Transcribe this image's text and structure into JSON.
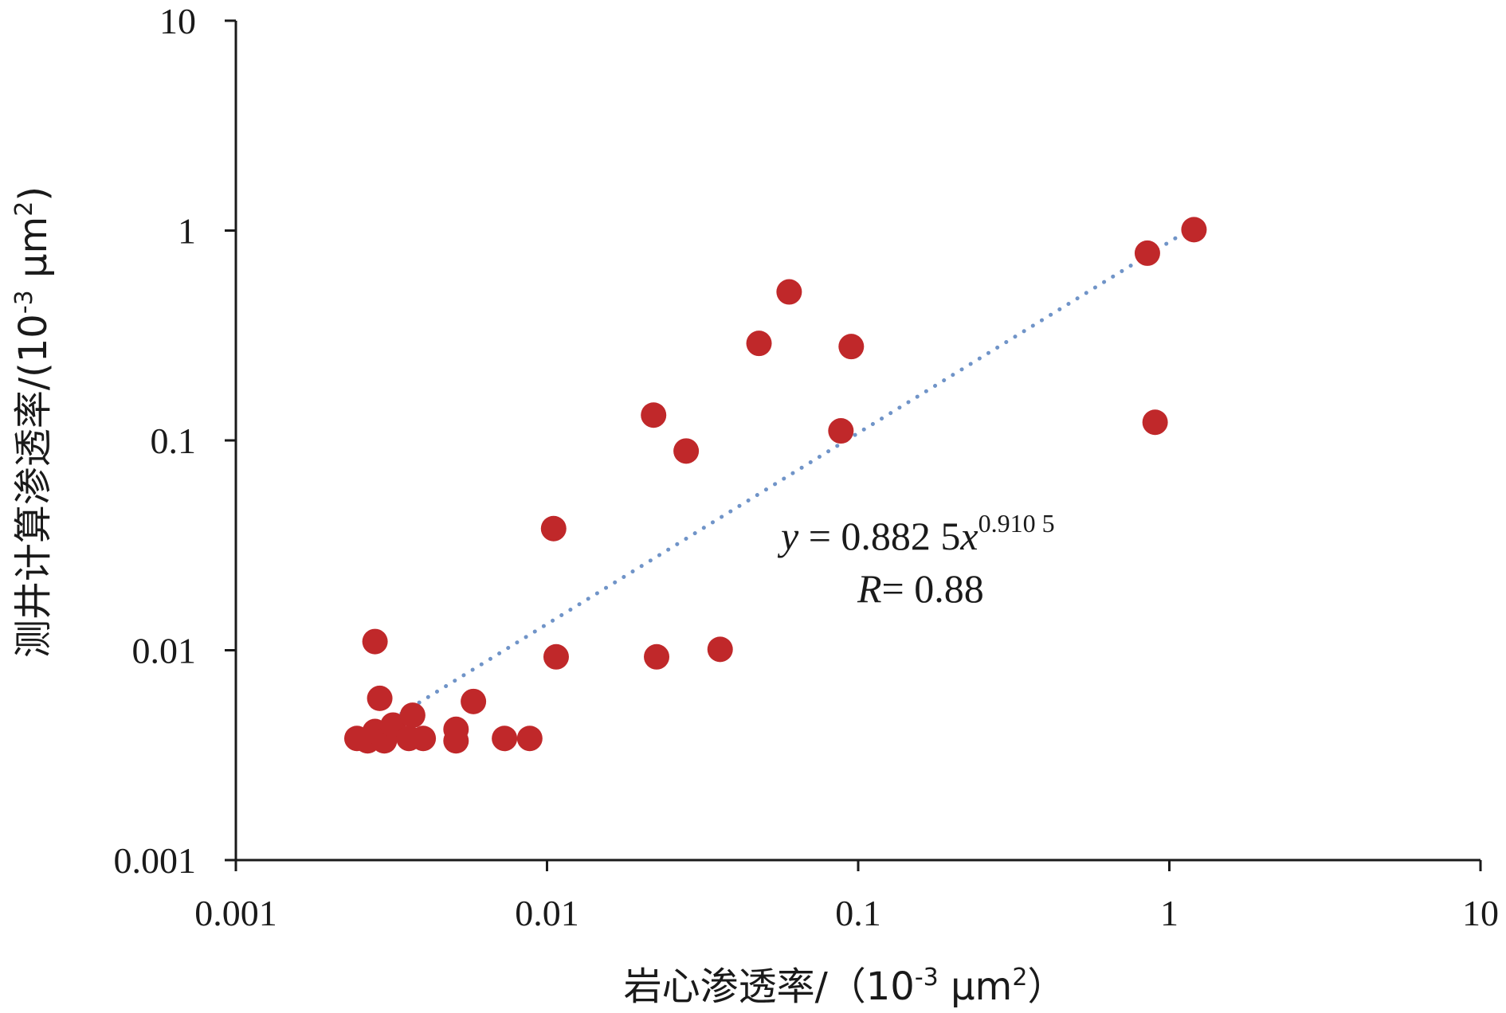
{
  "chart_data": {
    "type": "scatter",
    "x_scale": "log",
    "y_scale": "log",
    "xlim": [
      0.001,
      10
    ],
    "ylim": [
      0.001,
      10
    ],
    "x_ticks": [
      "0.001",
      "0.01",
      "0.1",
      "1",
      "10"
    ],
    "y_ticks": [
      "0.001",
      "0.01",
      "0.1",
      "1",
      "10"
    ],
    "xlabel": {
      "main": "岩心渗透率/（10",
      "sup": "-3",
      "unit": " μm",
      "unit_sup": "2",
      "close": "）"
    },
    "ylabel": {
      "main": "测井计算渗透率/(10",
      "sup": "-3",
      "unit": " μm",
      "unit_sup": "2",
      "close": ")"
    },
    "grid": false,
    "points": [
      {
        "x": 0.00245,
        "y": 0.0038
      },
      {
        "x": 0.00265,
        "y": 0.0037
      },
      {
        "x": 0.0028,
        "y": 0.0041
      },
      {
        "x": 0.003,
        "y": 0.0037
      },
      {
        "x": 0.0032,
        "y": 0.0044
      },
      {
        "x": 0.0036,
        "y": 0.0038
      },
      {
        "x": 0.0037,
        "y": 0.0049
      },
      {
        "x": 0.004,
        "y": 0.0038
      },
      {
        "x": 0.0028,
        "y": 0.011
      },
      {
        "x": 0.0029,
        "y": 0.0059
      },
      {
        "x": 0.0051,
        "y": 0.0037
      },
      {
        "x": 0.0051,
        "y": 0.0042
      },
      {
        "x": 0.0058,
        "y": 0.0057
      },
      {
        "x": 0.0073,
        "y": 0.0038
      },
      {
        "x": 0.0088,
        "y": 0.0038
      },
      {
        "x": 0.0105,
        "y": 0.038
      },
      {
        "x": 0.0107,
        "y": 0.0093
      },
      {
        "x": 0.022,
        "y": 0.132
      },
      {
        "x": 0.0225,
        "y": 0.0093
      },
      {
        "x": 0.028,
        "y": 0.089
      },
      {
        "x": 0.036,
        "y": 0.0101
      },
      {
        "x": 0.048,
        "y": 0.29
      },
      {
        "x": 0.06,
        "y": 0.51
      },
      {
        "x": 0.088,
        "y": 0.111
      },
      {
        "x": 0.095,
        "y": 0.28
      },
      {
        "x": 0.85,
        "y": 0.78
      },
      {
        "x": 0.9,
        "y": 0.122
      },
      {
        "x": 1.2,
        "y": 1.01
      }
    ],
    "point_color": "#c0282a",
    "trendline": {
      "type": "power",
      "a": 0.8825,
      "b": 0.9105,
      "x_range": [
        0.00245,
        1.15
      ],
      "color": "#7094c8",
      "style": "dotted",
      "equation": {
        "y": "y",
        "eq": " = 0.882 5",
        "x": "x",
        "exp": "0.910 5"
      },
      "r_text": {
        "r": "R",
        "eq": "= 0.88"
      }
    }
  }
}
